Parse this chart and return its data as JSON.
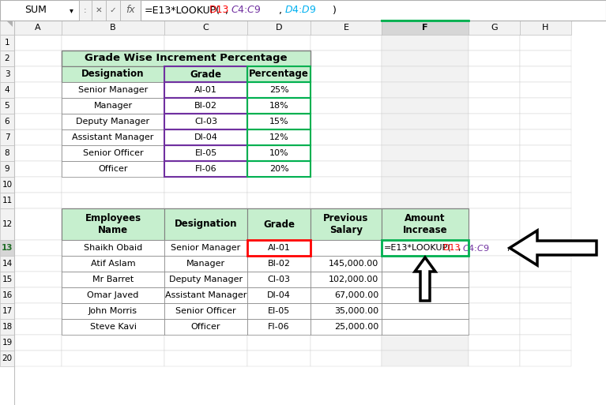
{
  "formula_bar": "=E13*LOOKUP(D13,$C$4:$C$9,$D$4:$D$9)",
  "cell_name": "SUM",
  "col_headers": [
    "A",
    "B",
    "C",
    "D",
    "E",
    "F",
    "G",
    "H"
  ],
  "row_numbers": [
    1,
    2,
    3,
    4,
    5,
    6,
    7,
    8,
    9,
    10,
    11,
    12,
    13,
    14,
    15,
    16,
    17,
    18,
    19,
    20
  ],
  "table1_title": "Grade Wise Increment Percentage",
  "table1_headers": [
    "Designation",
    "Grade",
    "Percentage"
  ],
  "table1_data": [
    [
      "Senior Manager",
      "AI-01",
      "25%"
    ],
    [
      "Manager",
      "BI-02",
      "18%"
    ],
    [
      "Deputy Manager",
      "CI-03",
      "15%"
    ],
    [
      "Assistant Manager",
      "DI-04",
      "12%"
    ],
    [
      "Senior Officer",
      "EI-05",
      "10%"
    ],
    [
      "Officer",
      "FI-06",
      "20%"
    ]
  ],
  "table2_headers": [
    "Employees\nName",
    "Designation",
    "Grade",
    "Previous\nSalary",
    "Amount\nIncrease"
  ],
  "table2_data": [
    [
      "Shaikh Obaid",
      "Senior Manager",
      "AI-01",
      "",
      "formula"
    ],
    [
      "Atif Aslam",
      "Manager",
      "BI-02",
      "145,000.00",
      ""
    ],
    [
      "Mr Barret",
      "Deputy Manager",
      "CI-03",
      "102,000.00",
      ""
    ],
    [
      "Omar Javed",
      "Assistant Manager",
      "DI-04",
      "67,000.00",
      ""
    ],
    [
      "John Morris",
      "Senior Officer",
      "EI-05",
      "35,000.00",
      ""
    ],
    [
      "Steve Kavi",
      "Officer",
      "FI-06",
      "25,000.00",
      ""
    ]
  ],
  "bg_color": "#FFFFFF",
  "grid_color": "#D0D0D0",
  "table1_title_bg": "#C6EFCE",
  "table1_header_bg": "#C6EFCE",
  "table2_header_bg": "#C6EFCE",
  "selected_col_bg": "#E2E2E2",
  "formula_bar_bg": "#F2F2F2",
  "cell_border_purple": "#7030A0",
  "cell_border_green": "#00B050",
  "cell_border_red": "#FF0000",
  "selected_col_header_bg": "#D6D6D6",
  "selected_col_cell_bg": "#F2F2F2",
  "row13_header_bg": "#D6D6D6",
  "formula_parts": [
    [
      "=E13*LOOKUP(",
      "#000000"
    ],
    [
      "D13",
      "#FF0000"
    ],
    [
      ",",
      "#000000"
    ],
    [
      "$C$4:$C$9",
      "#7030A0"
    ],
    [
      ",",
      "#000000"
    ],
    [
      "$D$4:$D$9",
      "#00B0F0"
    ],
    [
      ")",
      "#000000"
    ]
  ]
}
